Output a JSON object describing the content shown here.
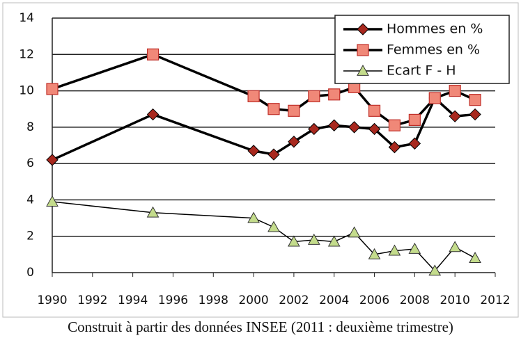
{
  "chart_data": {
    "type": "line",
    "x": [
      1990,
      1995,
      2000,
      2001,
      2002,
      2003,
      2004,
      2005,
      2006,
      2007,
      2008,
      2009,
      2010,
      2011
    ],
    "series": [
      {
        "name": "Hommes en %",
        "color": "#a8281e",
        "marker": "diamond",
        "values": [
          6.2,
          8.7,
          6.7,
          6.5,
          7.2,
          7.9,
          8.1,
          8.0,
          7.9,
          6.9,
          7.1,
          9.6,
          8.6,
          8.7
        ]
      },
      {
        "name": "Femmes en %",
        "color": "#f08878",
        "marker": "square",
        "values": [
          10.1,
          12.0,
          9.7,
          9.0,
          8.9,
          9.7,
          9.8,
          10.2,
          8.9,
          8.1,
          8.4,
          9.6,
          10.0,
          9.5
        ]
      },
      {
        "name": "Ecart F - H",
        "color": "#c4dc8c",
        "marker": "triangle",
        "values": [
          3.9,
          3.3,
          3.0,
          2.5,
          1.7,
          1.8,
          1.7,
          2.2,
          1.0,
          1.2,
          1.3,
          0.1,
          1.4,
          0.8
        ]
      }
    ],
    "xlim": [
      1990,
      2012
    ],
    "xticks": [
      1990,
      1992,
      1994,
      1996,
      1998,
      2000,
      2002,
      2004,
      2006,
      2008,
      2010,
      2012
    ],
    "ylim": [
      0,
      14
    ],
    "yticks": [
      0,
      2,
      4,
      6,
      8,
      10,
      12,
      14
    ],
    "grid": true,
    "legend": "top-right",
    "caption": "Construit à partir des données INSEE (2011 : deuxième trimestre)"
  }
}
